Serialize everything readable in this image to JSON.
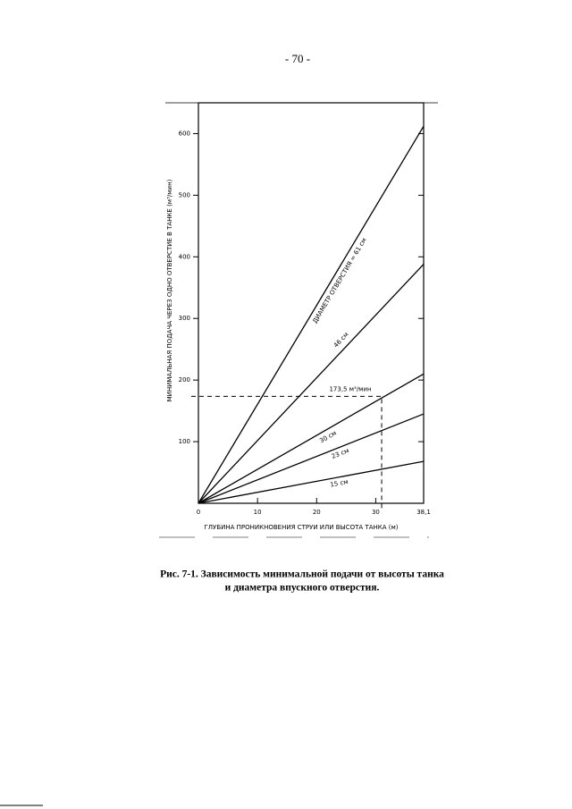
{
  "page_number": "- 70 -",
  "chart_data": {
    "type": "line",
    "x_label": "ГЛУБИНА ПРОНИКНОВЕНИЯ СТРУИ ИЛИ ВЫСОТА ТАНКА (м)",
    "y_label": "МИНИМАЛЬНАЯ ПОДАЧА ЧЕРЕЗ ОДНО ОТВЕРСТИЕ В ТАНКЕ (м³/мин)",
    "x": [
      0,
      38.1
    ],
    "series": [
      {
        "name": "ДИАМЕТР ОТВЕРСТИЯ = 61 см",
        "color": "#000000",
        "values": [
          0,
          612
        ]
      },
      {
        "name": "46 см",
        "color": "#000000",
        "values": [
          0,
          388
        ]
      },
      {
        "name": "30 см",
        "color": "#000000",
        "values": [
          0,
          210
        ]
      },
      {
        "name": "23 см",
        "color": "#000000",
        "values": [
          0,
          145
        ]
      },
      {
        "name": "15 см",
        "color": "#000000",
        "values": [
          0,
          68
        ]
      }
    ],
    "reference": {
      "x": 31,
      "y": 173.5,
      "label": "173,5 м³/мин"
    },
    "xlim": [
      0,
      38.1
    ],
    "xticks": [
      0,
      10,
      20,
      30,
      {
        "value": 38.1,
        "label": "38,1"
      }
    ],
    "ylim": [
      0,
      650
    ],
    "yticks": [
      100,
      200,
      300,
      400,
      500,
      600
    ]
  },
  "caption": [
    "Рис. 7-1. Зависимость минимальной подачи от высоты танка",
    "и диаметра впускного отверстия."
  ]
}
